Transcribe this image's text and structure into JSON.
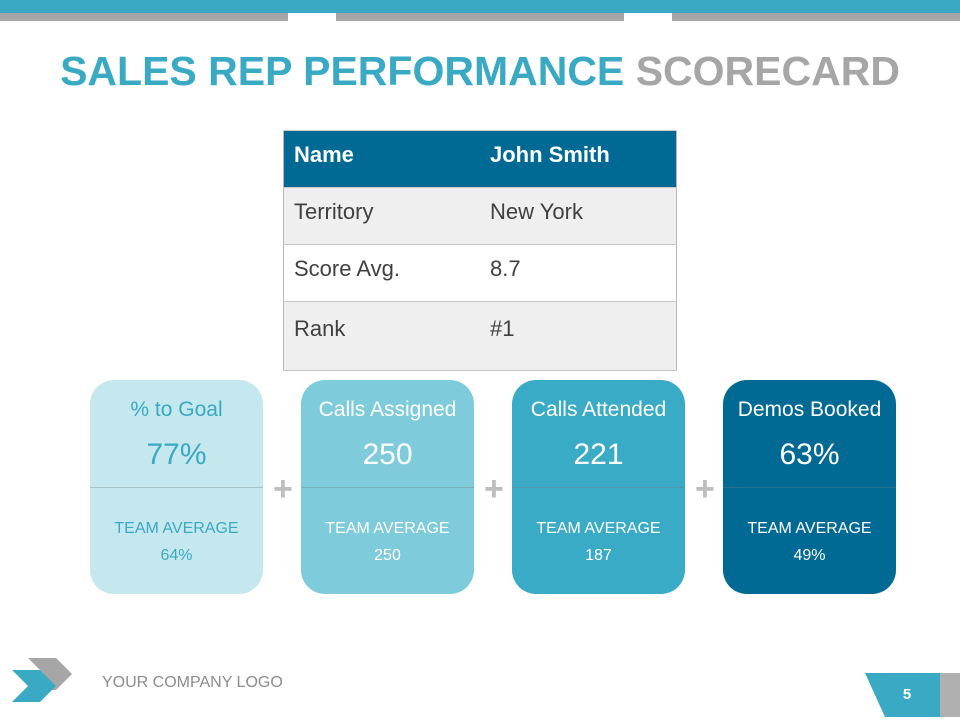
{
  "title": {
    "main": "SALES REP PERFORMANCE",
    "accent": "SCORECARD"
  },
  "table": {
    "header": [
      "Name",
      "John Smith"
    ],
    "rows": [
      [
        "Territory",
        "New York"
      ],
      [
        "Score Avg.",
        "8.7"
      ],
      [
        "Rank",
        "#1"
      ]
    ]
  },
  "cards": [
    {
      "label": "% to Goal",
      "value": "77%",
      "team_label": "TEAM AVERAGE",
      "team_value": "64%"
    },
    {
      "label": "Calls Assigned",
      "value": "250",
      "team_label": "TEAM AVERAGE",
      "team_value": "250"
    },
    {
      "label": "Calls Attended",
      "value": "221",
      "team_label": "TEAM AVERAGE",
      "team_value": "187"
    },
    {
      "label": "Demos Booked",
      "value": "63%",
      "team_label": "TEAM AVERAGE",
      "team_value": "49%"
    }
  ],
  "footer": {
    "logo": "YOUR COMPANY LOGO",
    "page": "5"
  }
}
